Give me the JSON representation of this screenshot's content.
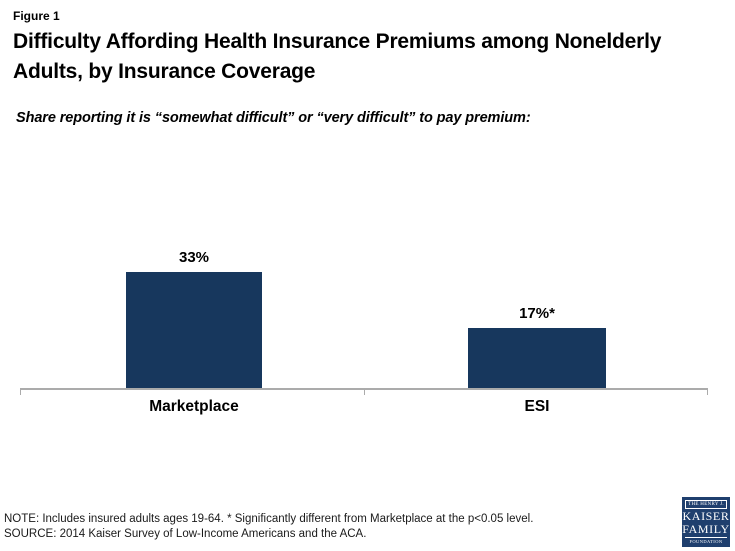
{
  "figure_label": "Figure 1",
  "title_lines": [
    "Difficulty Affording Health Insurance Premiums among Nonelderly",
    "Adults, by Insurance Coverage"
  ],
  "subtitle": "Share reporting it is “somewhat difficult” or “very difficult” to pay premium:",
  "chart_data": {
    "type": "bar",
    "title": "Share reporting it is “somewhat difficult” or “very difficult” to pay premium",
    "categories": [
      "Marketplace",
      "ESI"
    ],
    "values": [
      33,
      17
    ],
    "data_labels": [
      "33%",
      "17%*"
    ],
    "ylim": [
      0,
      68
    ],
    "grid": false,
    "legend": false,
    "bar_color": "#17375D",
    "axis_color": "#ABABAB"
  },
  "footer": {
    "note": "NOTE: Includes insured adults ages 19-64. * Significantly different from Marketplace at the p<0.05 level.",
    "source": "SOURCE: 2014 Kaiser Survey of Low-Income Americans and the ACA."
  },
  "logo": {
    "top_text": "THE HENRY J.",
    "name_line1": "KAISER",
    "name_line2": "FAMILY",
    "bottom_text": "FOUNDATION",
    "bg_color": "#1F3F6E"
  }
}
